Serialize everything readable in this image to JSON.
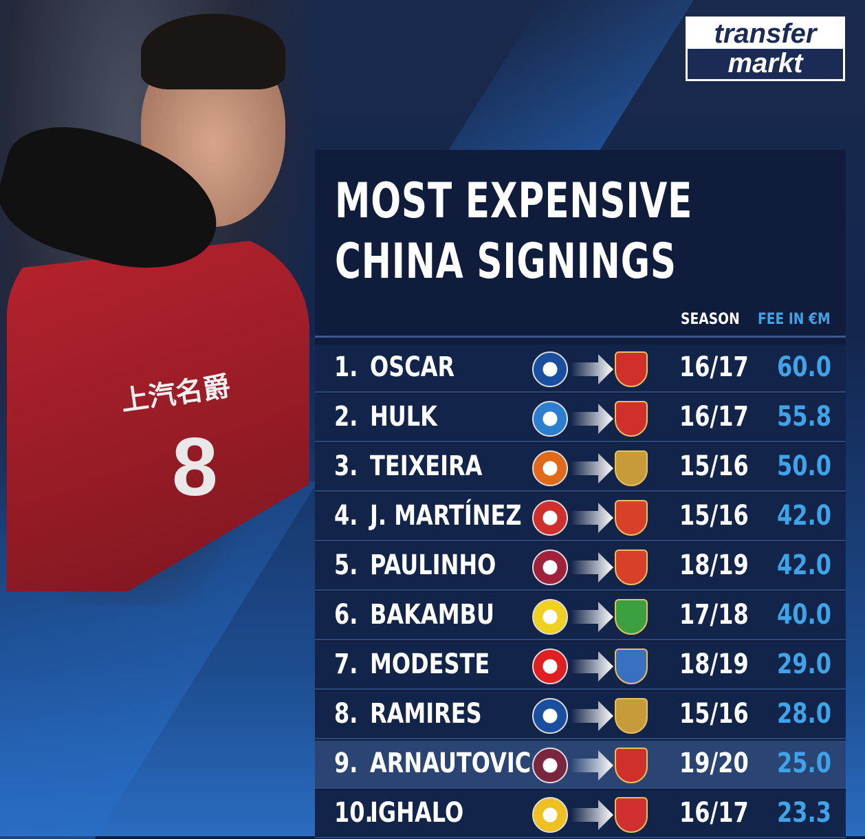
{
  "brand": {
    "line1": "transfer",
    "line2": "markt"
  },
  "title": {
    "line1": "MOST EXPENSIVE",
    "line2": "CHINA SIGNINGS"
  },
  "columns": {
    "season": "SEASON",
    "fee": "FEE IN €M"
  },
  "photo": {
    "shirt_number": "8",
    "sponsor": "上汽名爵"
  },
  "colors": {
    "fee": "#3fa3e8",
    "panel": "#0f1c3c",
    "highlight_row": "#2a4574"
  },
  "rows": [
    {
      "rank": "1.",
      "name": "OSCAR",
      "from": "chelsea-crest-icon",
      "from_color": "#1a4fa0",
      "to": "shanghai-sipg-crest-icon",
      "to_color": "#d0302c",
      "season": "16/17",
      "fee": "60.0"
    },
    {
      "rank": "2.",
      "name": "HULK",
      "from": "zenit-crest-icon",
      "from_color": "#2a7fd0",
      "to": "shanghai-sipg-crest-icon",
      "to_color": "#d0302c",
      "season": "16/17",
      "fee": "55.8"
    },
    {
      "rank": "3.",
      "name": "TEIXEIRA",
      "from": "shakhtar-crest-icon",
      "from_color": "#e06a1a",
      "to": "jiangsu-suning-crest-icon",
      "to_color": "#c79a3a",
      "season": "15/16",
      "fee": "50.0"
    },
    {
      "rank": "4.",
      "name": "J. MARTÍNEZ",
      "from": "atletico-madrid-crest-icon",
      "from_color": "#d0302c",
      "to": "guangzhou-evergrande-crest-icon",
      "to_color": "#d8402a",
      "season": "15/16",
      "fee": "42.0"
    },
    {
      "rank": "5.",
      "name": "PAULINHO",
      "from": "barcelona-crest-icon",
      "from_color": "#a0223a",
      "to": "guangzhou-evergrande-crest-icon",
      "to_color": "#d8402a",
      "season": "18/19",
      "fee": "42.0"
    },
    {
      "rank": "6.",
      "name": "BAKAMBU",
      "from": "villarreal-crest-icon",
      "from_color": "#f0d020",
      "to": "beijing-guoan-crest-icon",
      "to_color": "#3aa040",
      "season": "17/18",
      "fee": "40.0"
    },
    {
      "rank": "7.",
      "name": "MODESTE",
      "from": "koln-crest-icon",
      "from_color": "#e02020",
      "to": "tianjin-quanjian-crest-icon",
      "to_color": "#3a70c0",
      "season": "18/19",
      "fee": "29.0"
    },
    {
      "rank": "8.",
      "name": "RAMIRES",
      "from": "chelsea-crest-icon",
      "from_color": "#1a4fa0",
      "to": "jiangsu-suning-crest-icon",
      "to_color": "#c79a3a",
      "season": "15/16",
      "fee": "28.0"
    },
    {
      "rank": "9.",
      "name": "ARNAUTOVIC",
      "from": "west-ham-crest-icon",
      "from_color": "#7a2640",
      "to": "shanghai-sipg-crest-icon",
      "to_color": "#d0302c",
      "season": "19/20",
      "fee": "25.0"
    },
    {
      "rank": "10.",
      "name": "IGHALO",
      "from": "watford-crest-icon",
      "from_color": "#f0c020",
      "to": "changchun-yatai-crest-icon",
      "to_color": "#d03030",
      "season": "16/17",
      "fee": "23.3"
    }
  ]
}
